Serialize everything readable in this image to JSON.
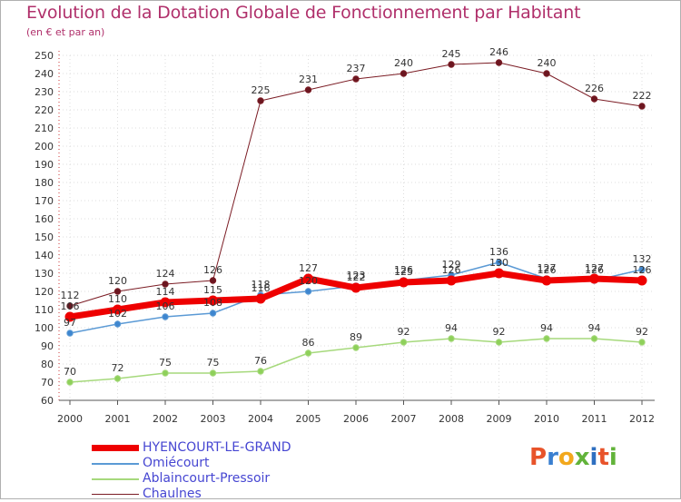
{
  "title": "Evolution de la Dotation Globale de Fonctionnement par Habitant",
  "subtitle": "(en € et par an)",
  "logo_letters": [
    "P",
    "r",
    "o",
    "x",
    "i",
    "t",
    "i"
  ],
  "logo_colors": [
    "#e8532a",
    "#3a7fd0",
    "#f2a81d",
    "#62b33a",
    "#2e6fc0",
    "#e8532a",
    "#62b33a"
  ],
  "chart_data": {
    "type": "line",
    "title": "Evolution de la Dotation Globale de Fonctionnement par Habitant",
    "subtitle": "(en € et par an)",
    "x": [
      "2000",
      "2001",
      "2002",
      "2003",
      "2004",
      "2005",
      "2006",
      "2007",
      "2008",
      "2009",
      "2010",
      "2011",
      "2012"
    ],
    "ylim": [
      60,
      250
    ],
    "yticks": [
      60,
      70,
      80,
      90,
      100,
      110,
      120,
      130,
      140,
      150,
      160,
      170,
      180,
      190,
      200,
      210,
      220,
      230,
      240,
      250
    ],
    "grid": true,
    "legend_position": "bottom-left",
    "series": [
      {
        "name": "Chaulnes",
        "color": "#7b1c24",
        "marker": "#6b1620",
        "width": 1,
        "values": [
          112,
          120,
          124,
          126,
          225,
          231,
          237,
          240,
          245,
          246,
          240,
          226,
          222
        ]
      },
      {
        "name": "Ablaincourt-Pressoir",
        "color": "#a6d97c",
        "marker": "#8ed05a",
        "width": 1.5,
        "values": [
          70,
          72,
          75,
          75,
          76,
          86,
          89,
          92,
          94,
          92,
          94,
          94,
          92
        ]
      },
      {
        "name": "Omiécourt",
        "color": "#5b9ad5",
        "marker": "#3e86cf",
        "width": 1.5,
        "values": [
          97,
          102,
          106,
          108,
          118,
          120,
          123,
          126,
          129,
          136,
          127,
          126,
          132
        ]
      },
      {
        "name": "HYENCOURT-LE-GRAND",
        "color": "#ee0000",
        "marker": "#ee0000",
        "width": 7,
        "values": [
          106,
          110,
          114,
          115,
          116,
          127,
          122,
          125,
          126,
          130,
          126,
          127,
          126
        ]
      }
    ],
    "legend": [
      "HYENCOURT-LE-GRAND",
      "Omiécourt",
      "Ablaincourt-Pressoir",
      "Chaulnes"
    ]
  }
}
